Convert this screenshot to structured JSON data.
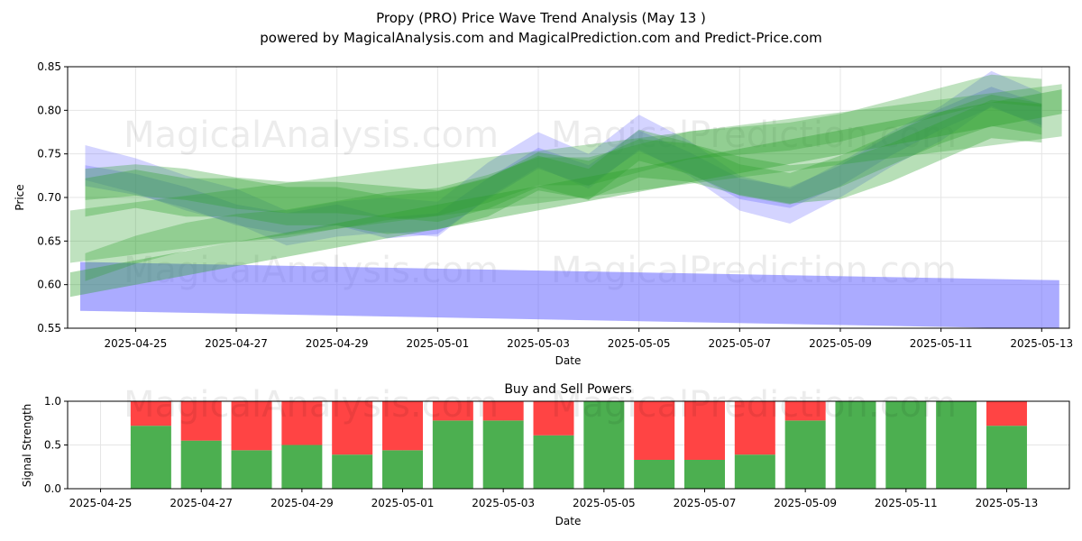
{
  "header": {
    "title": "Propy (PRO) Price Wave Trend Analysis (May 13 )",
    "subtitle": "powered by MagicalAnalysis.com and MagicalPrediction.com and Predict-Price.com"
  },
  "watermarks": [
    "MagicalAnalysis.com",
    "MagicalPrediction.com"
  ],
  "colors": {
    "blue": "#6666ff",
    "green": "#2ca02c",
    "buy": "#4caf50",
    "sell": "#ff4444"
  },
  "chart_data": [
    {
      "type": "area",
      "title": "",
      "xlabel": "Date",
      "ylabel": "Price",
      "x_start": "2025-04-24",
      "x_end": "2025-05-14",
      "xlim": [
        -0.35,
        19.55
      ],
      "ylim": [
        0.55,
        0.85
      ],
      "grid": true,
      "yticks": [
        "0.55",
        "0.60",
        "0.65",
        "0.70",
        "0.75",
        "0.80",
        "0.85"
      ],
      "xticks": [
        "2025-04-25",
        "2025-04-27",
        "2025-04-29",
        "2025-05-01",
        "2025-05-03",
        "2025-05-05",
        "2025-05-07",
        "2025-05-09",
        "2025-05-11",
        "2025-05-13"
      ],
      "series": [
        {
          "color": "blue",
          "x": [
            0,
            1,
            2,
            3,
            4,
            5,
            6,
            7,
            8,
            9,
            10,
            11,
            12,
            13,
            14,
            15,
            16,
            17,
            18,
            19
          ],
          "y": [
            0.74,
            0.725,
            0.705,
            0.69,
            0.665,
            0.675,
            0.68,
            0.675,
            0.72,
            0.755,
            0.73,
            0.775,
            0.745,
            0.705,
            0.69,
            0.72,
            0.755,
            0.785,
            0.825,
            0.8
          ]
        },
        {
          "color": "blue",
          "x": [
            0,
            1,
            2,
            3,
            4,
            5,
            6,
            7,
            8,
            9,
            10,
            11,
            12,
            13,
            14,
            15,
            16,
            17,
            18,
            19
          ],
          "y": [
            0.725,
            0.715,
            0.7,
            0.68,
            0.67,
            0.68,
            0.665,
            0.67,
            0.71,
            0.745,
            0.725,
            0.765,
            0.74,
            0.71,
            0.7,
            0.725,
            0.76,
            0.79,
            0.815,
            0.795
          ]
        },
        {
          "color": "blue",
          "x": [
            -0.1,
            19.35
          ],
          "y": [
            0.598,
            0.577
          ]
        },
        {
          "color": "green",
          "x": [
            0,
            1,
            2,
            3,
            4,
            5,
            6,
            7,
            8,
            9,
            10,
            11,
            12,
            13,
            14,
            15,
            16,
            17,
            18,
            19
          ],
          "y": [
            0.715,
            0.72,
            0.715,
            0.705,
            0.7,
            0.7,
            0.695,
            0.69,
            0.705,
            0.73,
            0.715,
            0.76,
            0.745,
            0.72,
            0.71,
            0.73,
            0.755,
            0.78,
            0.8,
            0.79
          ]
        },
        {
          "color": "green",
          "x": [
            -0.3,
            19.4
          ],
          "y": [
            0.655,
            0.8
          ]
        },
        {
          "color": "green",
          "x": [
            -0.3,
            19.4
          ],
          "y": [
            0.6,
            0.81
          ]
        },
        {
          "color": "green",
          "x": [
            0,
            1,
            2,
            3,
            4,
            5,
            6,
            7,
            8,
            9,
            10,
            11,
            12,
            13,
            14,
            15,
            16,
            17,
            18,
            19
          ],
          "y": [
            0.62,
            0.64,
            0.655,
            0.665,
            0.67,
            0.68,
            0.69,
            0.695,
            0.71,
            0.73,
            0.73,
            0.745,
            0.76,
            0.765,
            0.77,
            0.78,
            0.795,
            0.81,
            0.825,
            0.82
          ]
        },
        {
          "color": "green",
          "x": [
            0,
            1,
            2,
            3,
            4,
            5,
            6,
            7,
            8,
            9,
            10,
            11,
            12,
            13,
            14,
            15,
            16,
            17,
            18,
            19
          ],
          "y": [
            0.7,
            0.71,
            0.7,
            0.7,
            0.69,
            0.69,
            0.68,
            0.685,
            0.7,
            0.73,
            0.72,
            0.745,
            0.74,
            0.725,
            0.715,
            0.72,
            0.74,
            0.765,
            0.79,
            0.785
          ]
        }
      ]
    },
    {
      "type": "bar",
      "title": "Buy and Sell Powers",
      "xlabel": "Date",
      "ylabel": "Signal Strength",
      "ylim": [
        0,
        1
      ],
      "yticks": [
        "0.0",
        "0.5",
        "1.0"
      ],
      "xticks": [
        "2025-04-25",
        "2025-04-27",
        "2025-04-29",
        "2025-05-01",
        "2025-05-03",
        "2025-05-05",
        "2025-05-07",
        "2025-05-09",
        "2025-05-11",
        "2025-05-13"
      ],
      "categories": [
        "2025-04-26",
        "2025-04-27",
        "2025-04-28",
        "2025-04-29",
        "2025-04-30",
        "2025-05-01",
        "2025-05-02",
        "2025-05-03",
        "2025-05-04",
        "2025-05-05",
        "2025-05-06",
        "2025-05-07",
        "2025-05-08",
        "2025-05-09",
        "2025-05-10",
        "2025-05-11",
        "2025-05-12",
        "2025-05-13"
      ],
      "series": [
        {
          "color": "buy",
          "values": [
            0.72,
            0.55,
            0.44,
            0.5,
            0.39,
            0.44,
            0.78,
            0.78,
            0.61,
            1.0,
            0.33,
            0.33,
            0.39,
            0.78,
            1.0,
            1.0,
            1.0,
            0.72
          ]
        },
        {
          "color": "sell",
          "values": [
            0.28,
            0.45,
            0.56,
            0.5,
            0.61,
            0.56,
            0.22,
            0.22,
            0.39,
            0.0,
            0.67,
            0.67,
            0.61,
            0.22,
            0.0,
            0.0,
            0.0,
            0.28
          ]
        }
      ]
    }
  ]
}
